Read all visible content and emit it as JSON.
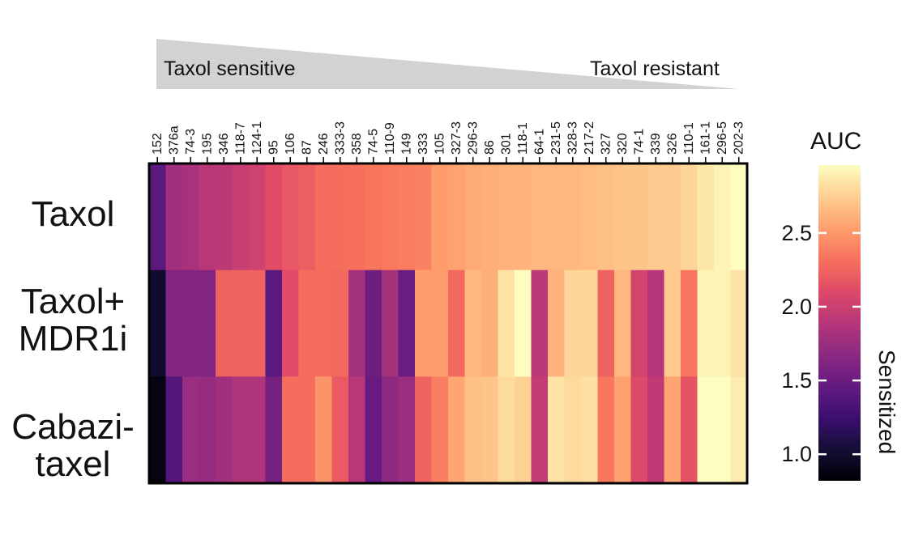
{
  "chart_data": {
    "type": "heatmap",
    "gradient_labels": {
      "left": "Taxol sensitive",
      "right": "Taxol resistant"
    },
    "columns": [
      "152",
      "376a",
      "74-3",
      "195",
      "346",
      "118-7",
      "124-1",
      "95",
      "106",
      "87",
      "246",
      "333-3",
      "358",
      "74-5",
      "110-9",
      "149",
      "333",
      "105",
      "327-3",
      "296-3",
      "86",
      "301",
      "118-1",
      "64-1",
      "231-5",
      "328-3",
      "217-2",
      "327",
      "320",
      "74-1",
      "339",
      "326",
      "110-1",
      "161-1",
      "296-5",
      "202-3"
    ],
    "rows": [
      {
        "label": "Taxol",
        "values": [
          1.42,
          1.78,
          1.82,
          1.9,
          1.92,
          1.98,
          2.02,
          2.12,
          2.18,
          2.22,
          2.3,
          2.3,
          2.32,
          2.34,
          2.36,
          2.38,
          2.4,
          2.52,
          2.55,
          2.58,
          2.6,
          2.62,
          2.62,
          2.64,
          2.64,
          2.65,
          2.66,
          2.68,
          2.7,
          2.7,
          2.72,
          2.72,
          2.78,
          2.86,
          2.92,
          2.96
        ]
      },
      {
        "label": "Taxol+\nMDR1i",
        "values": [
          1.0,
          1.62,
          1.62,
          1.62,
          2.24,
          2.24,
          2.24,
          1.42,
          2.12,
          2.3,
          2.3,
          2.28,
          1.8,
          1.52,
          1.8,
          1.5,
          2.52,
          2.52,
          2.28,
          2.64,
          2.6,
          2.84,
          2.96,
          1.92,
          2.62,
          2.78,
          2.78,
          2.24,
          2.64,
          2.04,
          1.88,
          2.72,
          2.34,
          2.92,
          2.92,
          2.84
        ]
      },
      {
        "label": "Cabazi-\ntaxel",
        "values": [
          0.88,
          1.38,
          1.74,
          1.72,
          1.78,
          1.86,
          1.86,
          1.56,
          2.3,
          2.3,
          2.48,
          2.2,
          1.9,
          1.48,
          1.68,
          1.74,
          2.24,
          2.38,
          2.56,
          2.68,
          2.7,
          2.8,
          2.76,
          1.96,
          2.84,
          2.8,
          2.82,
          2.34,
          2.54,
          2.1,
          1.94,
          2.56,
          2.16,
          2.96,
          2.96,
          2.88
        ]
      }
    ],
    "colorbar": {
      "title": "AUC",
      "label": "Sensitized",
      "range": [
        0.82,
        2.96
      ],
      "ticks": [
        1.0,
        1.5,
        2.0,
        2.5
      ],
      "tick_labels": [
        "1.0",
        "1.5",
        "2.0",
        "2.5"
      ],
      "colormap": "magma"
    },
    "colors": {
      "triangle": "#d2d2d2",
      "border": "#000000",
      "text": "#111111"
    }
  }
}
